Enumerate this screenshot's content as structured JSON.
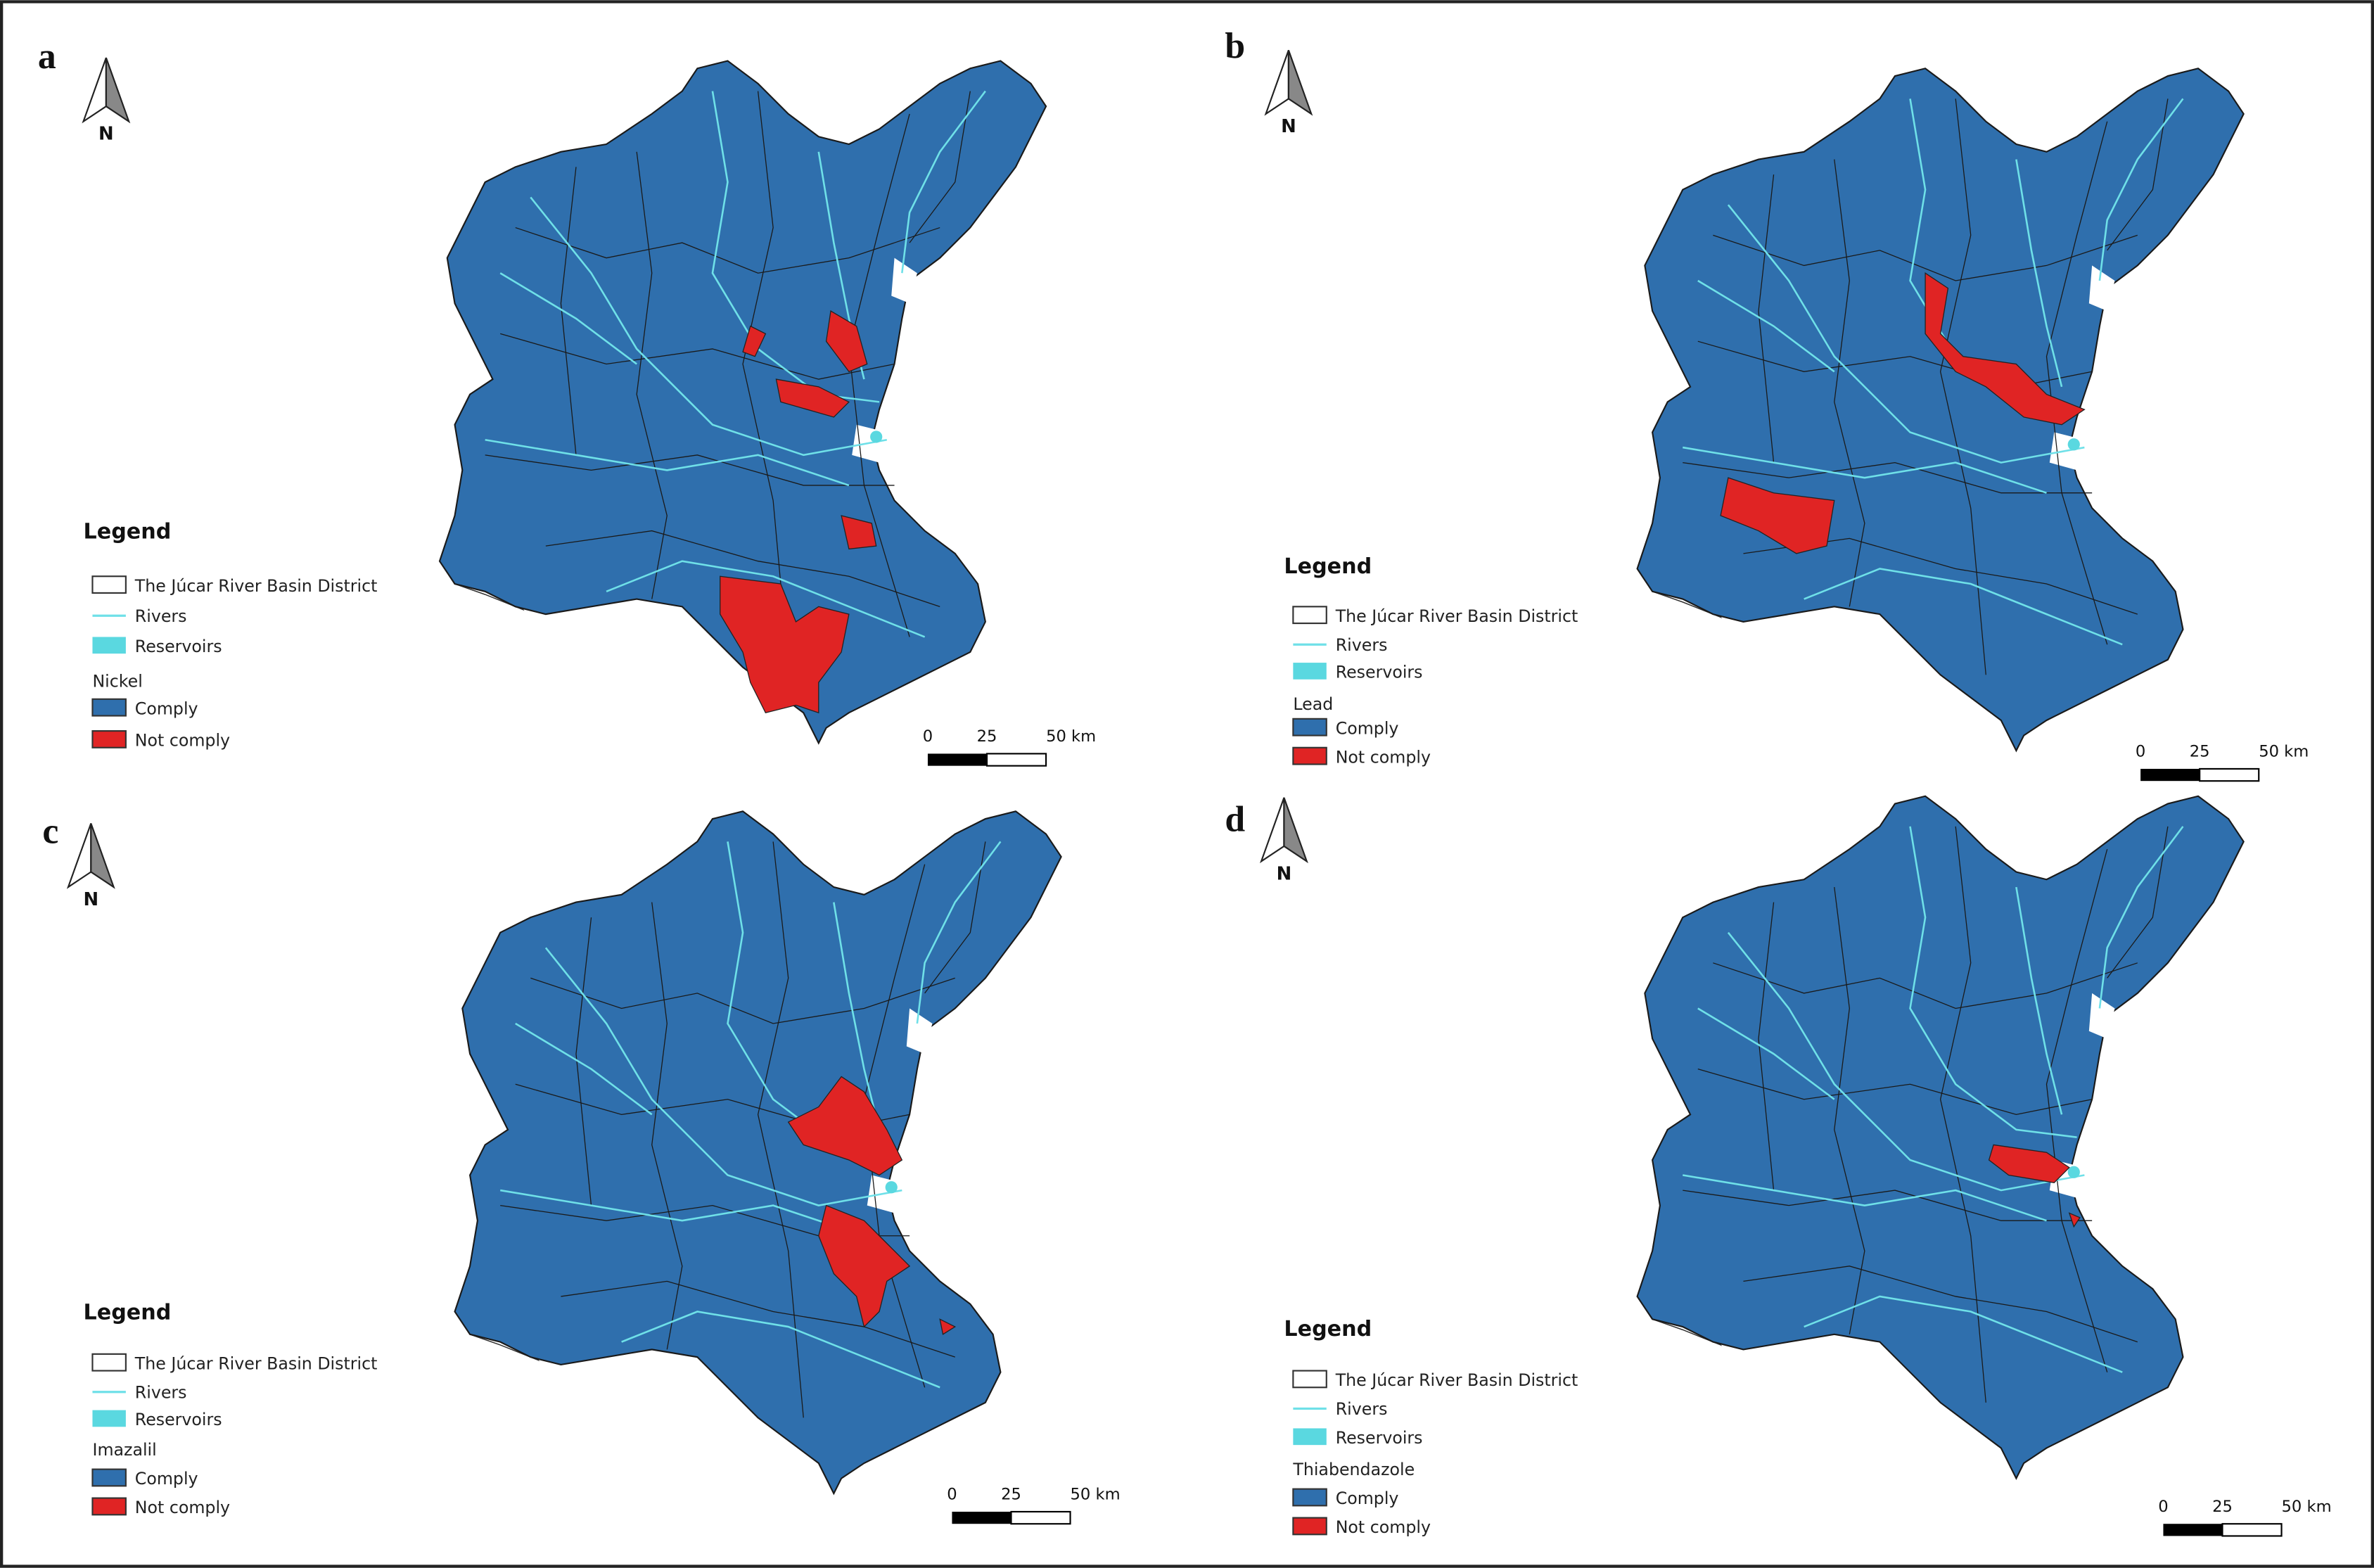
{
  "panels": [
    {
      "label": "a",
      "north": "N",
      "legend": {
        "title": "Legend",
        "district": "The Júcar River Basin District",
        "rivers": "Rivers",
        "reservoirs": "Reservoirs",
        "parameter": "Nickel",
        "comply": "Comply",
        "not_comply": "Not comply"
      },
      "scale": [
        "0",
        "25",
        "50 km"
      ]
    },
    {
      "label": "b",
      "north": "N",
      "legend": {
        "title": "Legend",
        "district": "The Júcar River Basin District",
        "rivers": "Rivers",
        "reservoirs": "Reservoirs",
        "parameter": "Lead",
        "comply": "Comply",
        "not_comply": "Not comply"
      },
      "scale": [
        "0",
        "25",
        "50 km"
      ]
    },
    {
      "label": "c",
      "north": "N",
      "legend": {
        "title": "Legend",
        "district": "The Júcar River Basin District",
        "rivers": "Rivers",
        "reservoirs": "Reservoirs",
        "parameter": "Imazalil",
        "comply": "Comply",
        "not_comply": "Not comply"
      },
      "scale": [
        "0",
        "25",
        "50 km"
      ]
    },
    {
      "label": "d",
      "north": "N",
      "legend": {
        "title": "Legend",
        "district": "The Júcar River Basin District",
        "rivers": "Rivers",
        "reservoirs": "Reservoirs",
        "parameter": "Thiabendazole",
        "comply": "Comply",
        "not_comply": "Not comply"
      },
      "scale": [
        "0",
        "25",
        "50 km"
      ]
    }
  ]
}
